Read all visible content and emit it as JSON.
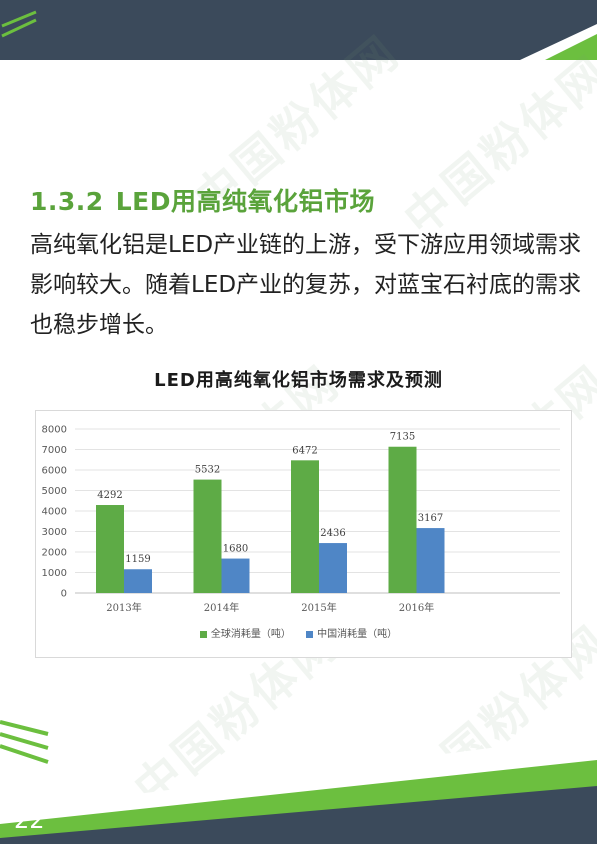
{
  "page": {
    "heading_number": "1.3.2",
    "heading_title": "LED用高纯氧化铝市场",
    "body_text": "高纯氧化铝是LED产业链的上游，受下游应用领域需求影响较大。随着LED产业的复苏，对蓝宝石衬底的需求也稳步增长。",
    "page_number": "22",
    "watermark": "中国粉体网"
  },
  "colors": {
    "banner": "#3b4a5b",
    "accent_green": "#6cbf3f",
    "series_global": "#5eab46",
    "series_china": "#4f86c6"
  },
  "chart_data": {
    "type": "bar",
    "title": "LED用高纯氧化铝市场需求及预测",
    "categories": [
      "2013年",
      "2014年",
      "2015年",
      "2016年"
    ],
    "series": [
      {
        "name": "全球消耗量（吨）",
        "values": [
          4292,
          5532,
          6472,
          7135
        ]
      },
      {
        "name": "中国消耗量（吨）",
        "values": [
          1159,
          1680,
          2436,
          3167
        ]
      }
    ],
    "ylim": [
      0,
      8000
    ],
    "yticks": [
      0,
      1000,
      2000,
      3000,
      4000,
      5000,
      6000,
      7000,
      8000
    ],
    "grid": true,
    "legend": "bottom"
  }
}
